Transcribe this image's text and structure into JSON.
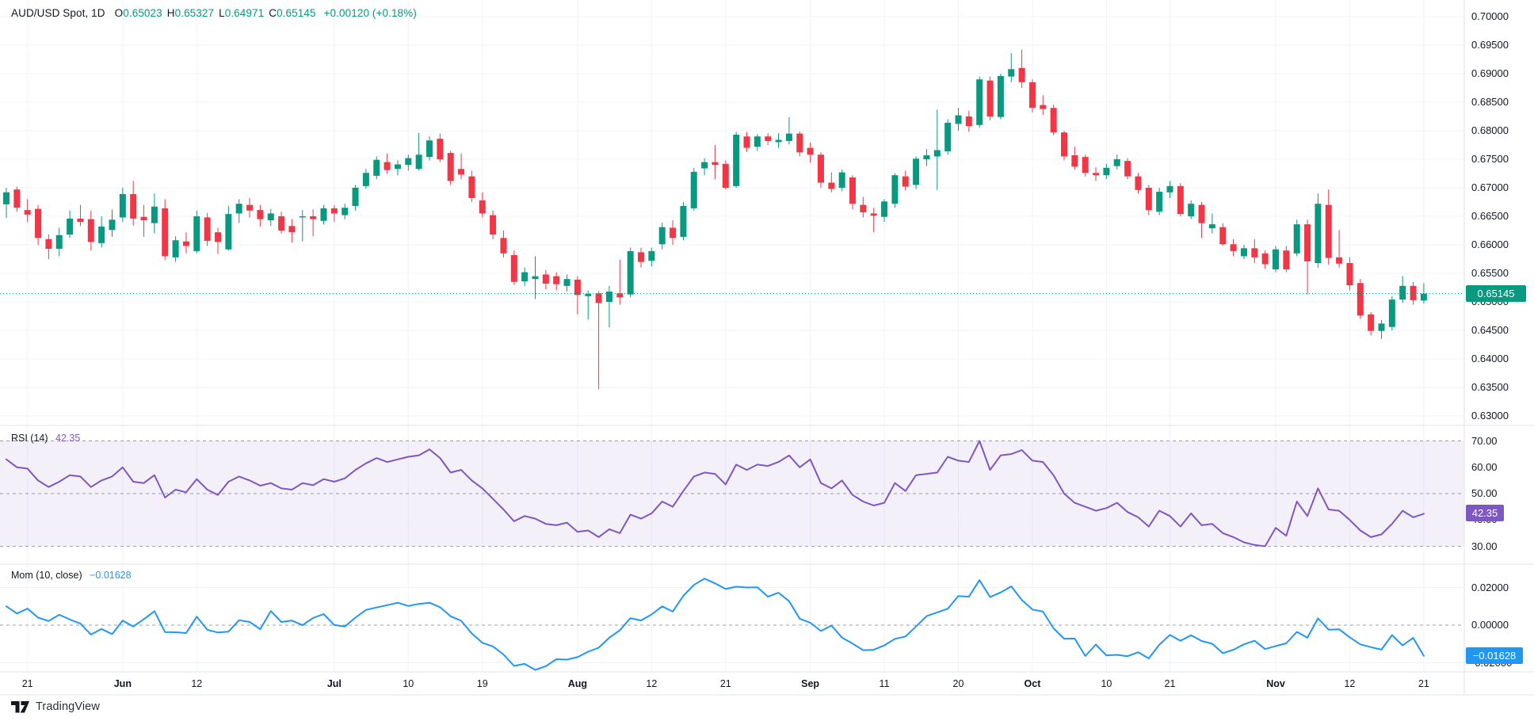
{
  "header": {
    "symbol": "AUD/USD Spot, 1D",
    "o_key": "O",
    "o_val": "0.65023",
    "h_key": "H",
    "h_val": "0.65327",
    "l_key": "L",
    "l_val": "0.64971",
    "c_key": "C",
    "c_val": "0.65145",
    "change": "+0.00120 (+0.18%)"
  },
  "panes": {
    "rsi": {
      "label": "RSI (14)",
      "value": "42.35"
    },
    "mom": {
      "label": "Mom (10, close)",
      "value": "−0.01628"
    }
  },
  "badges": {
    "price": "0.65145",
    "rsi": "42.35",
    "mom": "−0.01628"
  },
  "watermark": {
    "brand": "TradingView"
  },
  "colors": {
    "up": "#089981",
    "down": "#f23645",
    "rsi_line": "#7e57c2",
    "mom_line": "#2196f3",
    "grid": "#f0f3fa",
    "separator": "#e0e3eb",
    "dashed_level": "#787b86",
    "rsi_band": "rgba(126,87,194,0.09)",
    "text": "#131722",
    "price_badge": "#089981",
    "rsi_badge": "#7e57c2",
    "mom_badge": "#2196f3"
  },
  "price_axis_ticks": [
    {
      "label": "0.70000",
      "v": 0.7
    },
    {
      "label": "0.69500",
      "v": 0.695
    },
    {
      "label": "0.69000",
      "v": 0.69
    },
    {
      "label": "0.68500",
      "v": 0.685
    },
    {
      "label": "0.68000",
      "v": 0.68
    },
    {
      "label": "0.67500",
      "v": 0.675
    },
    {
      "label": "0.67000",
      "v": 0.67
    },
    {
      "label": "0.66500",
      "v": 0.665
    },
    {
      "label": "0.66000",
      "v": 0.66
    },
    {
      "label": "0.65500",
      "v": 0.655
    },
    {
      "label": "0.65000",
      "v": 0.65
    },
    {
      "label": "0.64500",
      "v": 0.645
    },
    {
      "label": "0.64000",
      "v": 0.64
    },
    {
      "label": "0.63500",
      "v": 0.635
    },
    {
      "label": "0.63000",
      "v": 0.63
    }
  ],
  "rsi_axis_ticks": [
    {
      "label": "70.00",
      "v": 70
    },
    {
      "label": "60.00",
      "v": 60
    },
    {
      "label": "50.00",
      "v": 50
    },
    {
      "label": "40.00",
      "v": 40
    },
    {
      "label": "30.00",
      "v": 30
    }
  ],
  "mom_axis_ticks": [
    {
      "label": "0.02000",
      "v": 0.02
    },
    {
      "label": "0.00000",
      "v": 0
    },
    {
      "label": "-0.02000",
      "v": -0.02
    }
  ],
  "time_axis_ticks": [
    {
      "label": "21",
      "i": 2,
      "bold": false
    },
    {
      "label": "Jun",
      "i": 11,
      "bold": true
    },
    {
      "label": "12",
      "i": 18,
      "bold": false
    },
    {
      "label": "Jul",
      "i": 31,
      "bold": true
    },
    {
      "label": "10",
      "i": 38,
      "bold": false
    },
    {
      "label": "19",
      "i": 45,
      "bold": false
    },
    {
      "label": "Aug",
      "i": 54,
      "bold": true
    },
    {
      "label": "12",
      "i": 61,
      "bold": false
    },
    {
      "label": "21",
      "i": 68,
      "bold": false
    },
    {
      "label": "Sep",
      "i": 76,
      "bold": true
    },
    {
      "label": "11",
      "i": 83,
      "bold": false
    },
    {
      "label": "20",
      "i": 90,
      "bold": false
    },
    {
      "label": "Oct",
      "i": 97,
      "bold": true
    },
    {
      "label": "10",
      "i": 104,
      "bold": false
    },
    {
      "label": "21",
      "i": 110,
      "bold": false
    },
    {
      "label": "Nov",
      "i": 120,
      "bold": true
    },
    {
      "label": "12",
      "i": 127,
      "bold": false
    },
    {
      "label": "21",
      "i": 134,
      "bold": false
    }
  ],
  "chart_data": {
    "type": "candlestick",
    "title": "AUD/USD Spot, 1D",
    "interval": "1D",
    "price_range": [
      0.63,
      0.7
    ],
    "current_price": 0.65145,
    "rsi_levels": {
      "upper": 70,
      "middle": 50,
      "lower": 30
    },
    "mom_zero": 0,
    "candles": [
      [
        0.6671,
        0.67,
        0.6647,
        0.6692
      ],
      [
        0.6697,
        0.6702,
        0.6658,
        0.6665
      ],
      [
        0.6661,
        0.668,
        0.664,
        0.6653
      ],
      [
        0.6663,
        0.667,
        0.66,
        0.6612
      ],
      [
        0.661,
        0.6618,
        0.6575,
        0.6593
      ],
      [
        0.6593,
        0.663,
        0.658,
        0.6617
      ],
      [
        0.6618,
        0.666,
        0.6612,
        0.6646
      ],
      [
        0.6646,
        0.667,
        0.6633,
        0.664
      ],
      [
        0.6645,
        0.666,
        0.659,
        0.6605
      ],
      [
        0.6603,
        0.665,
        0.6595,
        0.6632
      ],
      [
        0.6626,
        0.6662,
        0.6614,
        0.6644
      ],
      [
        0.6648,
        0.67,
        0.664,
        0.6689
      ],
      [
        0.6689,
        0.6712,
        0.6634,
        0.6646
      ],
      [
        0.6649,
        0.667,
        0.6614,
        0.6643
      ],
      [
        0.6638,
        0.669,
        0.662,
        0.6667
      ],
      [
        0.6664,
        0.668,
        0.6573,
        0.658
      ],
      [
        0.6578,
        0.6615,
        0.657,
        0.6608
      ],
      [
        0.6606,
        0.6622,
        0.6585,
        0.6598
      ],
      [
        0.6589,
        0.666,
        0.6585,
        0.665
      ],
      [
        0.6648,
        0.6656,
        0.6598,
        0.6607
      ],
      [
        0.6622,
        0.663,
        0.6584,
        0.6605
      ],
      [
        0.6592,
        0.6668,
        0.659,
        0.6654
      ],
      [
        0.6655,
        0.668,
        0.6638,
        0.6672
      ],
      [
        0.667,
        0.6682,
        0.6648,
        0.666
      ],
      [
        0.6661,
        0.667,
        0.6632,
        0.6645
      ],
      [
        0.6643,
        0.6663,
        0.6633,
        0.6655
      ],
      [
        0.665,
        0.6658,
        0.662,
        0.6625
      ],
      [
        0.6633,
        0.6645,
        0.6604,
        0.6622
      ],
      [
        0.6648,
        0.6661,
        0.6606,
        0.665
      ],
      [
        0.665,
        0.6662,
        0.6615,
        0.6645
      ],
      [
        0.6642,
        0.667,
        0.6636,
        0.6664
      ],
      [
        0.6664,
        0.667,
        0.664,
        0.6655
      ],
      [
        0.6652,
        0.6672,
        0.6645,
        0.6665
      ],
      [
        0.6668,
        0.6705,
        0.666,
        0.67
      ],
      [
        0.6703,
        0.6733,
        0.6698,
        0.6726
      ],
      [
        0.6721,
        0.6755,
        0.6715,
        0.6749
      ],
      [
        0.6745,
        0.676,
        0.6725,
        0.6731
      ],
      [
        0.6733,
        0.6748,
        0.6722,
        0.6741
      ],
      [
        0.674,
        0.6758,
        0.673,
        0.6752
      ],
      [
        0.6733,
        0.6796,
        0.673,
        0.6758
      ],
      [
        0.6754,
        0.679,
        0.6748,
        0.6783
      ],
      [
        0.6786,
        0.6795,
        0.6745,
        0.675
      ],
      [
        0.6761,
        0.6765,
        0.6705,
        0.6712
      ],
      [
        0.6733,
        0.676,
        0.6715,
        0.6723
      ],
      [
        0.672,
        0.673,
        0.6675,
        0.6682
      ],
      [
        0.6678,
        0.6692,
        0.6648,
        0.6655
      ],
      [
        0.6652,
        0.666,
        0.661,
        0.6618
      ],
      [
        0.6612,
        0.6625,
        0.6578,
        0.6585
      ],
      [
        0.6582,
        0.659,
        0.653,
        0.6535
      ],
      [
        0.6536,
        0.656,
        0.6528,
        0.6552
      ],
      [
        0.654,
        0.658,
        0.6505,
        0.6545
      ],
      [
        0.6548,
        0.6556,
        0.6522,
        0.6532
      ],
      [
        0.6545,
        0.6552,
        0.652,
        0.6531
      ],
      [
        0.6528,
        0.6548,
        0.6518,
        0.654
      ],
      [
        0.6539,
        0.6545,
        0.6478,
        0.6512
      ],
      [
        0.651,
        0.652,
        0.6469,
        0.6514
      ],
      [
        0.6515,
        0.6519,
        0.6347,
        0.6498
      ],
      [
        0.65,
        0.6528,
        0.6455,
        0.6518
      ],
      [
        0.6515,
        0.6574,
        0.6495,
        0.6508
      ],
      [
        0.6513,
        0.6595,
        0.6508,
        0.6589
      ],
      [
        0.6587,
        0.6595,
        0.656,
        0.657
      ],
      [
        0.6572,
        0.6595,
        0.6562,
        0.6589
      ],
      [
        0.6601,
        0.6639,
        0.6592,
        0.6631
      ],
      [
        0.663,
        0.6643,
        0.66,
        0.6612
      ],
      [
        0.6614,
        0.6675,
        0.6608,
        0.6668
      ],
      [
        0.6664,
        0.6735,
        0.666,
        0.6728
      ],
      [
        0.6734,
        0.6752,
        0.6722,
        0.6745
      ],
      [
        0.6745,
        0.6775,
        0.6715,
        0.674
      ],
      [
        0.6742,
        0.6748,
        0.6697,
        0.67
      ],
      [
        0.6703,
        0.6798,
        0.67,
        0.6793
      ],
      [
        0.679,
        0.6798,
        0.6763,
        0.677
      ],
      [
        0.6772,
        0.6794,
        0.6765,
        0.679
      ],
      [
        0.679,
        0.6796,
        0.6775,
        0.6782
      ],
      [
        0.678,
        0.6796,
        0.677,
        0.6784
      ],
      [
        0.6782,
        0.6824,
        0.6776,
        0.6795
      ],
      [
        0.6795,
        0.6799,
        0.6755,
        0.6762
      ],
      [
        0.677,
        0.6779,
        0.6744,
        0.6758
      ],
      [
        0.6758,
        0.6762,
        0.67,
        0.6709
      ],
      [
        0.6709,
        0.6727,
        0.6692,
        0.6698
      ],
      [
        0.67,
        0.6732,
        0.6694,
        0.6727
      ],
      [
        0.6718,
        0.6722,
        0.6662,
        0.6672
      ],
      [
        0.667,
        0.6684,
        0.6648,
        0.6657
      ],
      [
        0.6655,
        0.6665,
        0.6622,
        0.6651
      ],
      [
        0.6649,
        0.668,
        0.664,
        0.6676
      ],
      [
        0.6672,
        0.6725,
        0.6665,
        0.6722
      ],
      [
        0.672,
        0.673,
        0.6695,
        0.6702
      ],
      [
        0.6705,
        0.6755,
        0.6698,
        0.6751
      ],
      [
        0.675,
        0.6768,
        0.6738,
        0.6757
      ],
      [
        0.6755,
        0.6837,
        0.6696,
        0.6766
      ],
      [
        0.6764,
        0.682,
        0.6758,
        0.6814
      ],
      [
        0.6812,
        0.684,
        0.68,
        0.6827
      ],
      [
        0.6825,
        0.6835,
        0.6798,
        0.6808
      ],
      [
        0.681,
        0.6895,
        0.6805,
        0.689
      ],
      [
        0.6888,
        0.6895,
        0.6818,
        0.6825
      ],
      [
        0.6824,
        0.69,
        0.682,
        0.6896
      ],
      [
        0.6895,
        0.6936,
        0.6885,
        0.6908
      ],
      [
        0.691,
        0.6942,
        0.6875,
        0.6885
      ],
      [
        0.6885,
        0.689,
        0.6832,
        0.684
      ],
      [
        0.6845,
        0.6862,
        0.6828,
        0.6838
      ],
      [
        0.684,
        0.6846,
        0.6792,
        0.6797
      ],
      [
        0.6797,
        0.68,
        0.6748,
        0.6755
      ],
      [
        0.6757,
        0.6772,
        0.6732,
        0.6737
      ],
      [
        0.6754,
        0.6758,
        0.672,
        0.6726
      ],
      [
        0.6726,
        0.6736,
        0.6712,
        0.6722
      ],
      [
        0.6722,
        0.6742,
        0.6715,
        0.6735
      ],
      [
        0.6738,
        0.6758,
        0.6732,
        0.675
      ],
      [
        0.6747,
        0.6752,
        0.6715,
        0.672
      ],
      [
        0.672,
        0.6726,
        0.669,
        0.6696
      ],
      [
        0.67,
        0.6705,
        0.6652,
        0.6661
      ],
      [
        0.6658,
        0.67,
        0.6652,
        0.6693
      ],
      [
        0.6692,
        0.6712,
        0.6682,
        0.6703
      ],
      [
        0.6703,
        0.6708,
        0.665,
        0.6654
      ],
      [
        0.665,
        0.6678,
        0.6645,
        0.6672
      ],
      [
        0.667,
        0.6675,
        0.6612,
        0.6638
      ],
      [
        0.6629,
        0.6655,
        0.662,
        0.6636
      ],
      [
        0.6631,
        0.6638,
        0.6598,
        0.6601
      ],
      [
        0.6601,
        0.661,
        0.658,
        0.6589
      ],
      [
        0.658,
        0.66,
        0.6575,
        0.6594
      ],
      [
        0.6594,
        0.661,
        0.6568,
        0.6578
      ],
      [
        0.6585,
        0.659,
        0.6558,
        0.6566
      ],
      [
        0.6557,
        0.6598,
        0.6552,
        0.6592
      ],
      [
        0.659,
        0.6598,
        0.6552,
        0.6557
      ],
      [
        0.6585,
        0.6644,
        0.658,
        0.6636
      ],
      [
        0.6636,
        0.6644,
        0.6513,
        0.6571
      ],
      [
        0.6568,
        0.669,
        0.656,
        0.6672
      ],
      [
        0.667,
        0.6697,
        0.6565,
        0.6577
      ],
      [
        0.6578,
        0.6626,
        0.656,
        0.6567
      ],
      [
        0.6568,
        0.6578,
        0.652,
        0.6529
      ],
      [
        0.6533,
        0.654,
        0.647,
        0.6476
      ],
      [
        0.6478,
        0.6482,
        0.6441,
        0.6449
      ],
      [
        0.6449,
        0.6468,
        0.6435,
        0.6462
      ],
      [
        0.6456,
        0.651,
        0.645,
        0.6504
      ],
      [
        0.6504,
        0.6545,
        0.6498,
        0.6528
      ],
      [
        0.6528,
        0.6535,
        0.6495,
        0.6503
      ],
      [
        0.65023,
        0.65327,
        0.64971,
        0.65145
      ]
    ],
    "rsi14": [
      63,
      60,
      59.5,
      55,
      52.5,
      54.5,
      57,
      56.5,
      52.5,
      55,
      56.5,
      60,
      54.5,
      54,
      57,
      48.5,
      51.5,
      50.5,
      55.5,
      51.5,
      49.5,
      54.5,
      56.5,
      55,
      53,
      54,
      52,
      51.5,
      54,
      53.2,
      55.5,
      54.5,
      55.8,
      59,
      61.5,
      63.5,
      62,
      63,
      64,
      64.5,
      66.8,
      63.5,
      58,
      59,
      55,
      52,
      48,
      44,
      39.5,
      41.5,
      40.5,
      38.5,
      38,
      39,
      35.5,
      36,
      33.5,
      36.5,
      35,
      42,
      40.5,
      42.5,
      47,
      45,
      51,
      56.5,
      58,
      57.5,
      53.5,
      61,
      59,
      61,
      60.5,
      62,
      64.5,
      60,
      63,
      54,
      52,
      55,
      49.5,
      47,
      45.5,
      46.5,
      54,
      51,
      57,
      57.5,
      58,
      64,
      62.5,
      62,
      70,
      59,
      64.5,
      65,
      66.5,
      62.5,
      62,
      57,
      50,
      46.5,
      45,
      43.5,
      44.5,
      46.5,
      43,
      41,
      37.5,
      43.5,
      41.5,
      37.5,
      42.5,
      38,
      38.5,
      35,
      33.5,
      31.5,
      30.5,
      30,
      37,
      34,
      47,
      41.5,
      52,
      44,
      43.5,
      40,
      36,
      33.5,
      34.5,
      38.5,
      43.5,
      41,
      42.35
    ],
    "mom10": [
      0.01,
      0.0062,
      0.0088,
      0.004,
      0.0022,
      0.0055,
      0.003,
      0.0008,
      -0.005,
      -0.002,
      -0.0048,
      0.0024,
      -0.0007,
      0.0031,
      0.0074,
      -0.0037,
      -0.0038,
      -0.0042,
      0.0045,
      -0.0025,
      -0.0039,
      -0.0035,
      0.0026,
      0.0017,
      -0.0022,
      0.0075,
      0.0017,
      0.0024,
      0.0,
      0.0038,
      0.0059,
      0.0001,
      -0.0007,
      0.004,
      0.0081,
      0.0094,
      0.0106,
      0.0119,
      0.0102,
      0.0113,
      0.0119,
      0.0095,
      0.0047,
      0.0023,
      -0.0044,
      -0.0094,
      -0.0113,
      -0.0156,
      -0.0217,
      -0.0206,
      -0.0238,
      -0.0218,
      -0.0181,
      -0.0183,
      -0.017,
      -0.0141,
      -0.012,
      -0.0067,
      -0.0027,
      0.0037,
      0.0025,
      0.0057,
      0.01,
      0.0072,
      0.0156,
      0.0214,
      0.0247,
      0.0222,
      0.0192,
      0.0204,
      0.02,
      0.0201,
      0.0151,
      0.0172,
      0.0127,
      0.0034,
      0.0013,
      -0.0031,
      -0.0002,
      -0.0066,
      -0.0098,
      -0.0133,
      -0.0131,
      -0.0108,
      -0.0073,
      -0.006,
      -0.0007,
      0.0048,
      0.0068,
      0.0087,
      0.0155,
      0.0151,
      0.0239,
      0.0149,
      0.0174,
      0.0206,
      0.0134,
      0.0083,
      0.0072,
      -0.0017,
      -0.0072,
      -0.0071,
      -0.0164,
      -0.0103,
      -0.0161,
      -0.0158,
      -0.0165,
      -0.0144,
      -0.0177,
      -0.0104,
      -0.0052,
      -0.0083,
      -0.0054,
      -0.0084,
      -0.0099,
      -0.0149,
      -0.0131,
      -0.0102,
      -0.0083,
      -0.0127,
      -0.0111,
      -0.0097,
      -0.0036,
      -0.0067,
      0.0036,
      -0.0024,
      -0.0022,
      -0.0065,
      -0.0102,
      -0.0117,
      -0.013,
      -0.0053,
      -0.0108,
      -0.0068,
      -0.01628
    ]
  }
}
